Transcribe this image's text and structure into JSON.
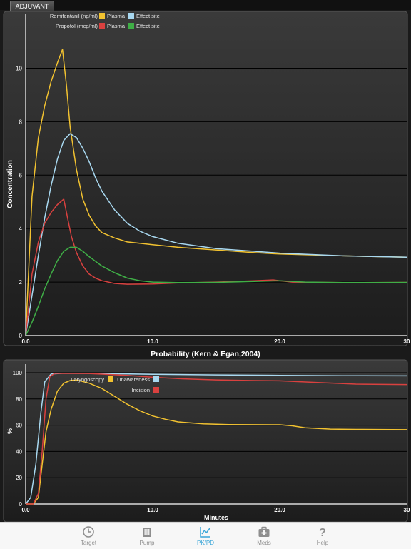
{
  "header": {
    "tab_label": "ADJUVANT"
  },
  "top_chart": {
    "ylabel": "Concentration",
    "legend": [
      {
        "drug": "Remifentanil (ng/ml)",
        "plasma_label": "Plasma",
        "effect_label": "Effect site"
      },
      {
        "drug": "Propofol (mcg/ml)",
        "plasma_label": "Plasma",
        "effect_label": "Effect site"
      }
    ]
  },
  "bottom_chart": {
    "title": "Probability (Kern & Egan,2004)",
    "ylabel": "%",
    "xlabel": "Minutes",
    "legend": {
      "laryngoscopy": "Laryngoscopy",
      "unawareness": "Unawareness",
      "incision": "Incision"
    }
  },
  "colors": {
    "yellow": "#f2c230",
    "light_blue": "#a8d8f0",
    "red": "#d9413f",
    "green": "#3fae46",
    "accent": "#3aa6d8"
  },
  "chart_data": [
    {
      "type": "line",
      "xlabel": "",
      "ylabel": "Concentration",
      "xlim": [
        0,
        30
      ],
      "ylim": [
        0,
        11
      ],
      "x_ticks": [
        "0.0",
        "10.0",
        "20.0",
        "30"
      ],
      "y_ticks": [
        "0",
        "2",
        "4",
        "6",
        "8",
        "10"
      ],
      "series": [
        {
          "name": "Remifentanil (ng/ml) Plasma",
          "color": "#f2c230",
          "points": [
            [
              0,
              0
            ],
            [
              0.5,
              5.2
            ],
            [
              1,
              7.4
            ],
            [
              1.5,
              8.6
            ],
            [
              2,
              9.5
            ],
            [
              2.5,
              10.2
            ],
            [
              2.9,
              10.7
            ],
            [
              3.2,
              9.4
            ],
            [
              3.5,
              7.8
            ],
            [
              4,
              6.2
            ],
            [
              4.5,
              5.1
            ],
            [
              5,
              4.5
            ],
            [
              5.5,
              4.1
            ],
            [
              6,
              3.85
            ],
            [
              7,
              3.65
            ],
            [
              8,
              3.5
            ],
            [
              10,
              3.4
            ],
            [
              12,
              3.3
            ],
            [
              15,
              3.2
            ],
            [
              18,
              3.1
            ],
            [
              20,
              3.05
            ],
            [
              25,
              2.98
            ],
            [
              30,
              2.93
            ]
          ]
        },
        {
          "name": "Remifentanil (ng/ml) Effect site",
          "color": "#a8d8f0",
          "points": [
            [
              0,
              0
            ],
            [
              0.5,
              1.5
            ],
            [
              1,
              3.0
            ],
            [
              1.5,
              4.4
            ],
            [
              2,
              5.6
            ],
            [
              2.5,
              6.6
            ],
            [
              3,
              7.3
            ],
            [
              3.5,
              7.55
            ],
            [
              4,
              7.4
            ],
            [
              4.5,
              7.0
            ],
            [
              5,
              6.5
            ],
            [
              5.5,
              5.9
            ],
            [
              6,
              5.4
            ],
            [
              7,
              4.7
            ],
            [
              8,
              4.2
            ],
            [
              9,
              3.9
            ],
            [
              10,
              3.7
            ],
            [
              12,
              3.45
            ],
            [
              15,
              3.25
            ],
            [
              18,
              3.15
            ],
            [
              20,
              3.08
            ],
            [
              25,
              2.98
            ],
            [
              30,
              2.93
            ]
          ]
        },
        {
          "name": "Propofol (mcg/ml) Plasma",
          "color": "#d9413f",
          "points": [
            [
              0,
              0
            ],
            [
              0.5,
              2.3
            ],
            [
              1,
              3.5
            ],
            [
              1.5,
              4.2
            ],
            [
              2,
              4.6
            ],
            [
              2.5,
              4.9
            ],
            [
              3,
              5.1
            ],
            [
              3.3,
              4.4
            ],
            [
              3.6,
              3.7
            ],
            [
              4,
              3.1
            ],
            [
              4.5,
              2.6
            ],
            [
              5,
              2.3
            ],
            [
              5.5,
              2.15
            ],
            [
              6,
              2.05
            ],
            [
              7,
              1.95
            ],
            [
              8,
              1.92
            ],
            [
              10,
              1.93
            ],
            [
              12,
              1.97
            ],
            [
              15,
              2.0
            ],
            [
              18,
              2.05
            ],
            [
              19.5,
              2.08
            ],
            [
              20,
              2.05
            ],
            [
              21,
              2.0
            ],
            [
              25,
              1.98
            ],
            [
              30,
              1.99
            ]
          ]
        },
        {
          "name": "Propofol (mcg/ml) Effect site",
          "color": "#3fae46",
          "points": [
            [
              0,
              0
            ],
            [
              0.5,
              0.5
            ],
            [
              1,
              1.1
            ],
            [
              1.5,
              1.75
            ],
            [
              2,
              2.3
            ],
            [
              2.5,
              2.8
            ],
            [
              3,
              3.15
            ],
            [
              3.5,
              3.3
            ],
            [
              4,
              3.3
            ],
            [
              4.5,
              3.15
            ],
            [
              5,
              2.95
            ],
            [
              6,
              2.6
            ],
            [
              7,
              2.35
            ],
            [
              8,
              2.15
            ],
            [
              9,
              2.05
            ],
            [
              10,
              2.0
            ],
            [
              12,
              1.98
            ],
            [
              15,
              1.99
            ],
            [
              18,
              2.02
            ],
            [
              20,
              2.05
            ],
            [
              22,
              2.0
            ],
            [
              25,
              1.98
            ],
            [
              30,
              1.99
            ]
          ]
        }
      ]
    },
    {
      "type": "line",
      "title": "Probability (Kern & Egan,2004)",
      "xlabel": "Minutes",
      "ylabel": "%",
      "xlim": [
        0,
        30
      ],
      "ylim": [
        0,
        100
      ],
      "x_ticks": [
        "0.0",
        "10.0",
        "20.0",
        "30"
      ],
      "y_ticks": [
        "0",
        "20",
        "40",
        "60",
        "80",
        "100"
      ],
      "series": [
        {
          "name": "Laryngoscopy",
          "color": "#f2c230",
          "points": [
            [
              0,
              0
            ],
            [
              0.6,
              0
            ],
            [
              1,
              5
            ],
            [
              1.3,
              30
            ],
            [
              1.6,
              55
            ],
            [
              2,
              72
            ],
            [
              2.5,
              86
            ],
            [
              3,
              92
            ],
            [
              3.5,
              94
            ],
            [
              4,
              94.5
            ],
            [
              5,
              92
            ],
            [
              6,
              88
            ],
            [
              7,
              82
            ],
            [
              8,
              76
            ],
            [
              9,
              71
            ],
            [
              10,
              67
            ],
            [
              11,
              64.5
            ],
            [
              12,
              62.5
            ],
            [
              14,
              61
            ],
            [
              16,
              60.5
            ],
            [
              20,
              60.3
            ],
            [
              21,
              59.5
            ],
            [
              22,
              58
            ],
            [
              24,
              57
            ],
            [
              26,
              56.8
            ],
            [
              30,
              56.6
            ]
          ]
        },
        {
          "name": "Unawareness",
          "color": "#a8d8f0",
          "points": [
            [
              0,
              0
            ],
            [
              0.4,
              5
            ],
            [
              0.8,
              30
            ],
            [
              1.2,
              70
            ],
            [
              1.5,
              93
            ],
            [
              2,
              99
            ],
            [
              3,
              99.6
            ],
            [
              5,
              99.5
            ],
            [
              10,
              98.8
            ],
            [
              15,
              98.3
            ],
            [
              20,
              98
            ],
            [
              25,
              97.7
            ],
            [
              30,
              97.6
            ]
          ]
        },
        {
          "name": "Incision",
          "color": "#d9413f",
          "points": [
            [
              0,
              0
            ],
            [
              0.6,
              0
            ],
            [
              1,
              8
            ],
            [
              1.3,
              40
            ],
            [
              1.6,
              80
            ],
            [
              1.9,
              97
            ],
            [
              2.3,
              99.5
            ],
            [
              5,
              99.4
            ],
            [
              8,
              98
            ],
            [
              10,
              96.5
            ],
            [
              12,
              95.5
            ],
            [
              15,
              94.5
            ],
            [
              18,
              94
            ],
            [
              20,
              93.8
            ],
            [
              23,
              92.5
            ],
            [
              26,
              91.3
            ],
            [
              30,
              91
            ]
          ]
        }
      ]
    }
  ],
  "bottom_bar": {
    "tabs": [
      {
        "label": "Target",
        "icon": "clock-icon",
        "active": false
      },
      {
        "label": "Pump",
        "icon": "pump-icon",
        "active": false
      },
      {
        "label": "PK/PD",
        "icon": "line-chart-icon",
        "active": true
      },
      {
        "label": "Meds",
        "icon": "medkit-icon",
        "active": false
      },
      {
        "label": "Help",
        "icon": "question-icon",
        "active": false
      }
    ]
  }
}
